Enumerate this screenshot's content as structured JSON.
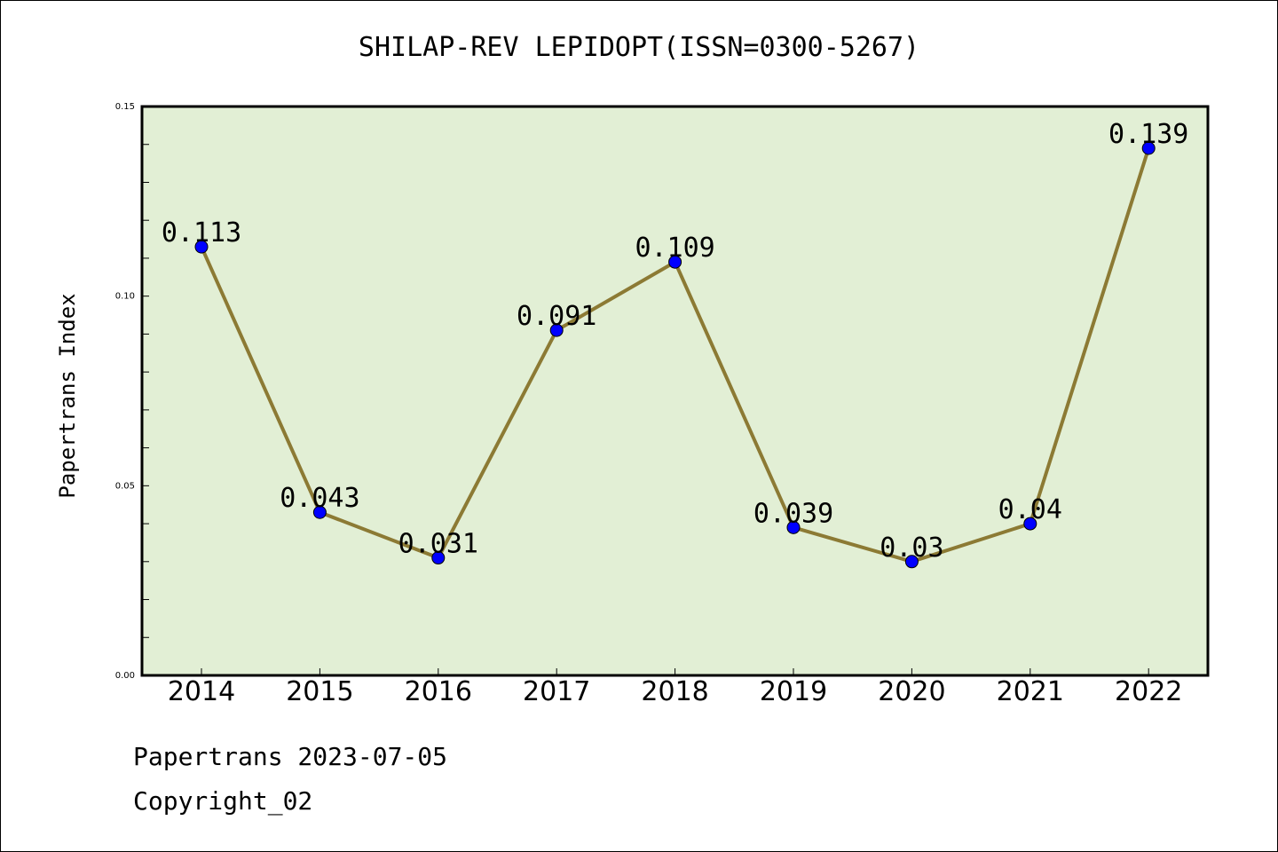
{
  "chart_data": {
    "type": "line",
    "title": "SHILAP-REV LEPIDOPT(ISSN=0300-5267)",
    "xlabel": "",
    "ylabel": "Papertrans Index",
    "categories": [
      "2014",
      "2015",
      "2016",
      "2017",
      "2018",
      "2019",
      "2020",
      "2021",
      "2022"
    ],
    "series": [
      {
        "values": [
          0.113,
          0.043,
          0.031,
          0.091,
          0.109,
          0.039,
          0.03,
          0.04,
          0.139
        ]
      }
    ],
    "data_labels": [
      "0.113",
      "0.043",
      "0.031",
      "0.091",
      "0.109",
      "0.039",
      "0.03",
      "0.04",
      "0.139"
    ],
    "ylim": [
      0,
      0.15
    ],
    "yticks": [
      "0.00",
      "0.05",
      "0.10",
      "0.15"
    ],
    "grid": false,
    "colors": {
      "plot_background": "#e2efd5",
      "line": "#8c7a34",
      "marker": "#0000ff"
    }
  },
  "footer": {
    "line1": "Papertrans 2023-07-05",
    "line2": "Copyright_02"
  }
}
